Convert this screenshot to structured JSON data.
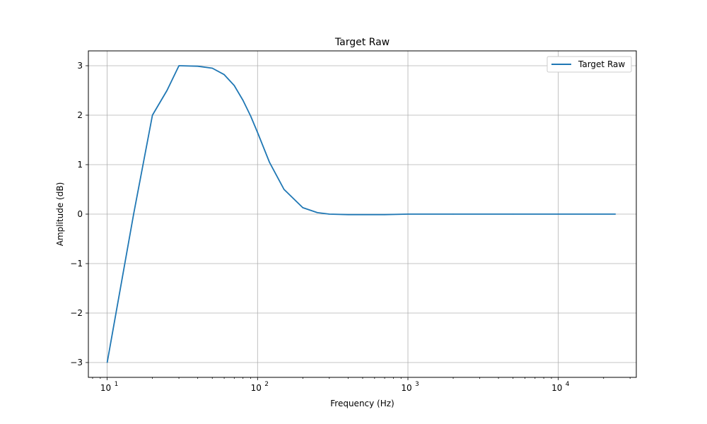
{
  "chart_data": {
    "type": "line",
    "title": "Target Raw",
    "xlabel": "Frequency (Hz)",
    "ylabel": "Amplitude (dB)",
    "xscale": "log",
    "xlim": [
      7.5,
      33000
    ],
    "ylim": [
      -3.3,
      3.3
    ],
    "grid": true,
    "legend_position": "top-right",
    "x_ticks": [
      {
        "value": 10,
        "base": "10",
        "exp": "1"
      },
      {
        "value": 100,
        "base": "10",
        "exp": "2"
      },
      {
        "value": 1000,
        "base": "10",
        "exp": "3"
      },
      {
        "value": 10000,
        "base": "10",
        "exp": "4"
      }
    ],
    "y_ticks": [
      {
        "value": 3,
        "label": "3"
      },
      {
        "value": 2,
        "label": "2"
      },
      {
        "value": 1,
        "label": "1"
      },
      {
        "value": 0,
        "label": "0"
      },
      {
        "value": -1,
        "label": "−1"
      },
      {
        "value": -2,
        "label": "−2"
      },
      {
        "value": -3,
        "label": "−3"
      }
    ],
    "series": [
      {
        "name": "Target Raw",
        "color": "#1f77b4",
        "x": [
          10,
          15,
          20,
          25,
          30,
          40,
          50,
          60,
          70,
          80,
          90,
          100,
          120,
          150,
          200,
          250,
          300,
          400,
          500,
          700,
          1000,
          2000,
          5000,
          10000,
          24000
        ],
        "y": [
          -3,
          0,
          2,
          2.5,
          3,
          2.99,
          2.95,
          2.82,
          2.6,
          2.3,
          1.98,
          1.65,
          1.05,
          0.5,
          0.13,
          0.03,
          0.0,
          -0.01,
          -0.01,
          -0.01,
          0,
          0,
          0,
          0,
          0
        ]
      }
    ]
  }
}
